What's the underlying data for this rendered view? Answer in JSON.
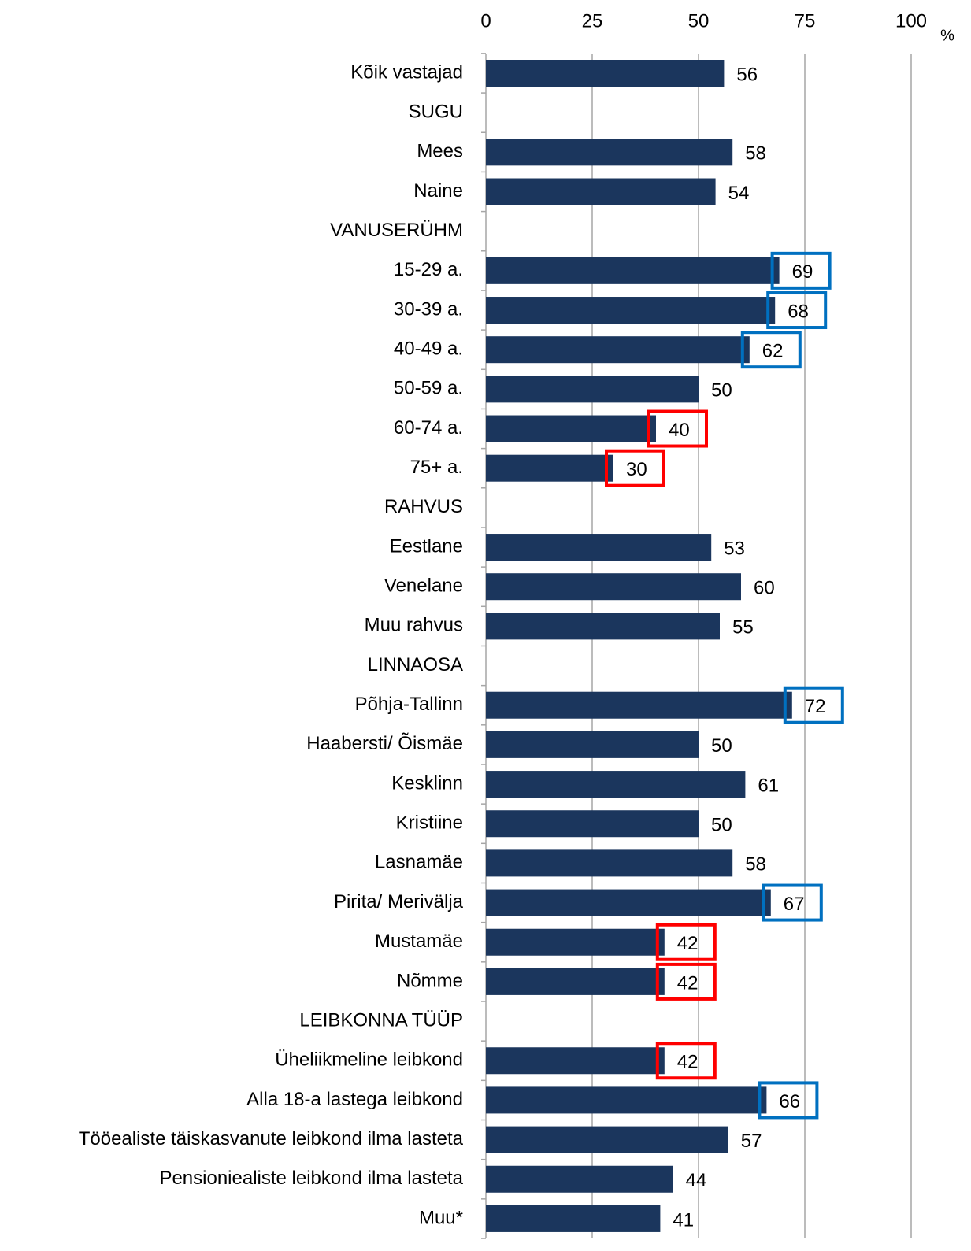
{
  "chart_data": {
    "type": "hbar",
    "unit_label": "%",
    "categories": [
      "Kõik vastajad",
      "SUGU",
      "Mees",
      "Naine",
      "VANUSERÜHM",
      "15-29 a.",
      "30-39 a.",
      "40-49 a.",
      "50-59 a.",
      "60-74 a.",
      "75+ a.",
      "RAHVUS",
      "Eestlane",
      "Venelane",
      "Muu rahvus",
      "LINNAOSA",
      "Põhja-Tallinn",
      "Haabersti/ Õismäe",
      "Kesklinn",
      "Kristiine",
      "Lasnamäe",
      "Pirita/ Merivälja",
      "Mustamäe",
      "Nõmme",
      "LEIBKONNA TÜÜP",
      "Üheliikmeline leibkond",
      "Alla 18-a lastega leibkond",
      "Tööealiste täiskasvanute leibkond ilma lasteta",
      "Pensioniealiste leibkond ilma lasteta",
      "Muu*"
    ],
    "values": [
      56,
      null,
      58,
      54,
      null,
      69,
      68,
      62,
      50,
      40,
      30,
      null,
      53,
      60,
      55,
      null,
      72,
      50,
      61,
      50,
      58,
      67,
      42,
      42,
      null,
      42,
      66,
      57,
      44,
      41
    ],
    "highlight_colors": [
      null,
      null,
      null,
      null,
      null,
      "#0070c0",
      "#0070c0",
      "#0070c0",
      null,
      "#ff0000",
      "#ff0000",
      null,
      null,
      null,
      null,
      null,
      "#0070c0",
      null,
      null,
      null,
      null,
      "#0070c0",
      "#ff0000",
      "#ff0000",
      null,
      "#ff0000",
      "#0070c0",
      null,
      null,
      null
    ],
    "color": "#1b365d",
    "xlim": [
      0,
      100
    ],
    "xticks": [
      0,
      25,
      50,
      75,
      100
    ],
    "grid": true
  }
}
